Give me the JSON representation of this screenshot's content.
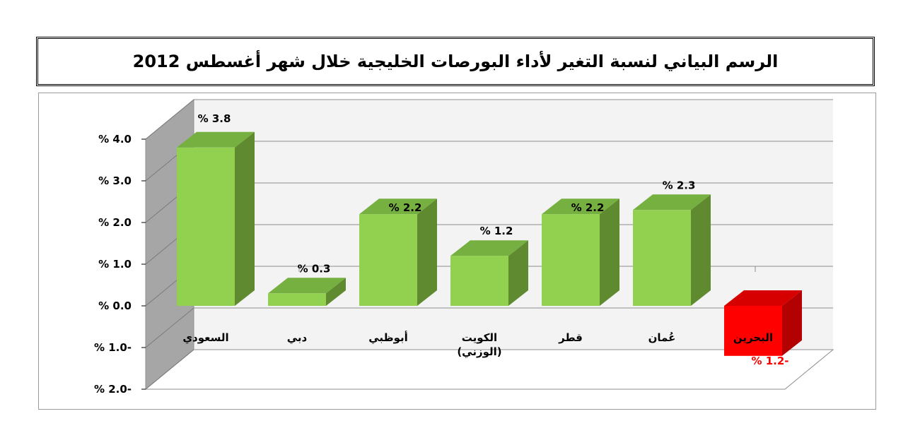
{
  "title": "الرسم البياني لنسبة التغير لأداء البورصات الخليجية خلال شهر أغسطس  2012",
  "colors": {
    "bar_front": "#92d050",
    "bar_side": "#5f8a30",
    "bar_top": "#76b041",
    "neg_front": "#ff0000",
    "neg_side": "#b30000",
    "neg_top": "#d60000",
    "neg_label": "#ff0000",
    "wall": "#a6a6a6",
    "back_wall": "#f3f3f3",
    "grid": "#8c8c8c"
  },
  "chart_data": {
    "type": "bar",
    "categories": [
      "السعودي",
      "دبي",
      "أبوظبي",
      "الكويت\n(الوزني)",
      "قطر",
      "عُمان",
      "البحرين"
    ],
    "values": [
      3.8,
      0.3,
      2.2,
      1.2,
      2.2,
      2.3,
      -1.2
    ],
    "data_labels": [
      "% 3.8",
      "% 0.3",
      "% 2.2",
      "% 1.2",
      "% 2.2",
      "% 2.3",
      "% 1.2-"
    ],
    "ylim": [
      -2.0,
      4.0
    ],
    "yticks": [
      4.0,
      3.0,
      2.0,
      1.0,
      0.0,
      -1.0,
      -2.0
    ],
    "ytick_labels": [
      "% 4.0",
      "% 3.0",
      "% 2.0",
      "% 1.0",
      "% 0.0",
      "% 1.0-",
      "% 2.0-"
    ],
    "title": "الرسم البياني لنسبة التغير لأداء البورصات الخليجية خلال شهر أغسطس  2012",
    "xlabel": "",
    "ylabel": "",
    "grid": true,
    "legend": "none"
  }
}
